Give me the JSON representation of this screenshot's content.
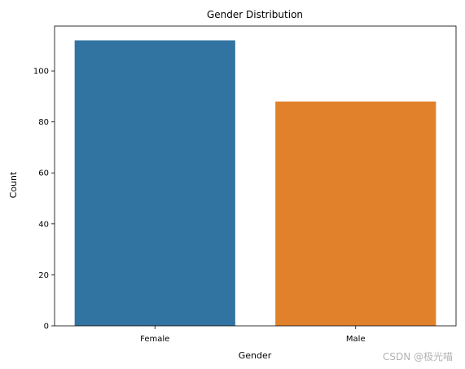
{
  "chart_data": {
    "type": "bar",
    "title": "Gender Distribution",
    "xlabel": "Gender",
    "ylabel": "Count",
    "categories": [
      "Female",
      "Male"
    ],
    "values": [
      112,
      88
    ],
    "colors": [
      "#3274a1",
      "#e1812c"
    ],
    "ylim": [
      0,
      117.6
    ],
    "yticks": [
      0,
      20,
      40,
      60,
      80,
      100
    ],
    "grid": false,
    "legend": "none"
  },
  "watermark": "CSDN @极光喵"
}
